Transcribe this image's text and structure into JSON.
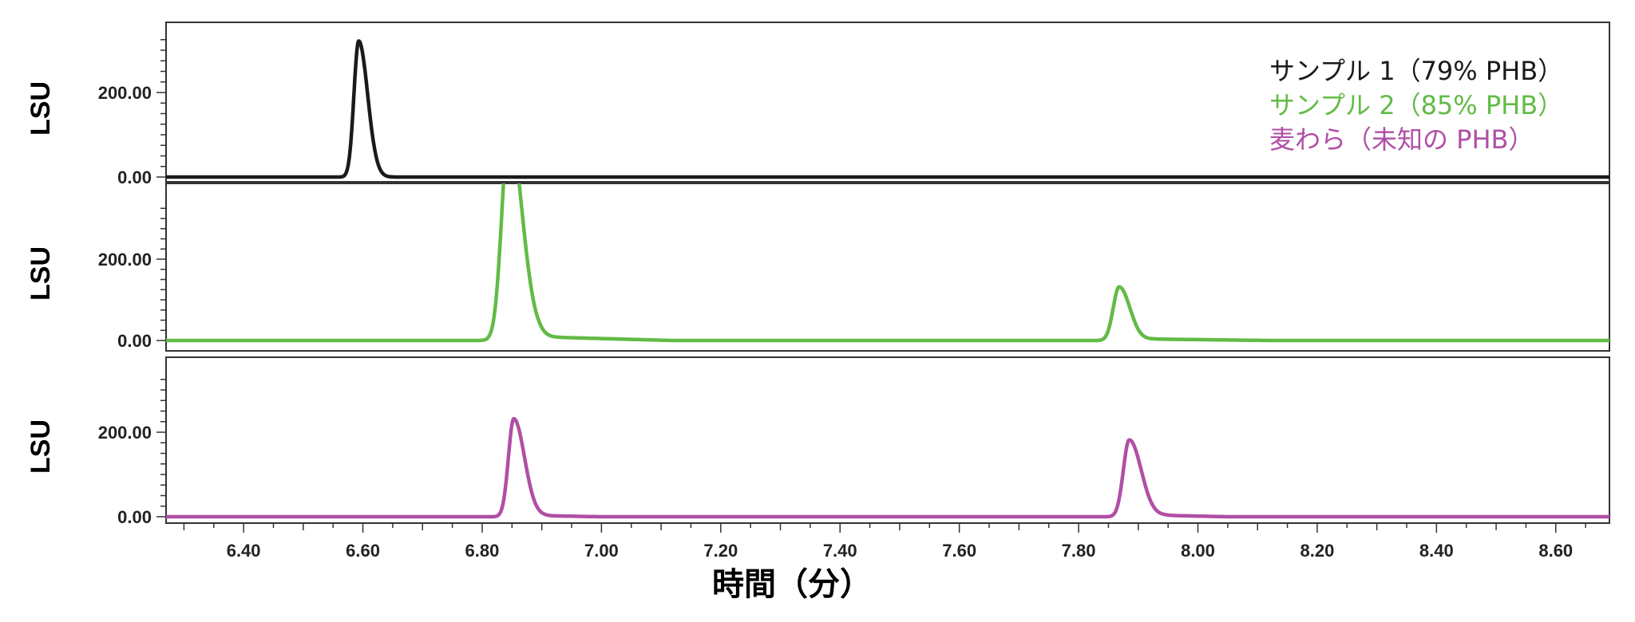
{
  "chart_data": {
    "type": "line",
    "xlabel": "時間（分）",
    "xlim": [
      6.27,
      8.69
    ],
    "x_ticks": [
      "6.40",
      "6.60",
      "6.80",
      "7.00",
      "7.20",
      "7.40",
      "7.60",
      "7.80",
      "8.00",
      "8.20",
      "8.40",
      "8.60"
    ],
    "legend_position": "top-right",
    "panels": [
      {
        "ylabel": "LSU",
        "ylim": [
          -5,
          350
        ],
        "y_ticks": [
          "0.00",
          "200.00"
        ],
        "series": [
          {
            "name": "サンプル 1（79% PHB）",
            "color": "#1a1a1a",
            "peaks": [
              {
                "x": 6.593,
                "height": 322,
                "width_left": 0.008,
                "width_right": 0.015
              }
            ],
            "baseline": 0
          }
        ]
      },
      {
        "ylabel": "LSU",
        "ylim": [
          -5,
          350
        ],
        "y_ticks": [
          "0.00",
          "200.00"
        ],
        "series": [
          {
            "name": "サンプル 2（85% PHB）",
            "color": "#62bb46",
            "peaks": [
              {
                "x": 6.845,
                "height": 520,
                "width_left": 0.012,
                "width_right": 0.022
              },
              {
                "x": 7.868,
                "height": 132,
                "width_left": 0.01,
                "width_right": 0.018
              }
            ],
            "tails": [
              {
                "start": 6.87,
                "end": 7.12,
                "level": 10
              },
              {
                "start": 7.9,
                "end": 8.12,
                "level": 4
              }
            ],
            "baseline": 0
          }
        ]
      },
      {
        "ylabel": "LSU",
        "ylim": [
          -5,
          350
        ],
        "y_ticks": [
          "0.00",
          "200.00"
        ],
        "series": [
          {
            "name": "麦わら（未知の PHB）",
            "color": "#b04fa6",
            "peaks": [
              {
                "x": 6.853,
                "height": 232,
                "width_left": 0.009,
                "width_right": 0.018
              },
              {
                "x": 7.885,
                "height": 182,
                "width_left": 0.01,
                "width_right": 0.02
              }
            ],
            "tails": [
              {
                "start": 6.88,
                "end": 7.0,
                "level": 3
              },
              {
                "start": 7.92,
                "end": 8.05,
                "level": 4
              }
            ],
            "baseline": 0
          }
        ]
      }
    ]
  }
}
